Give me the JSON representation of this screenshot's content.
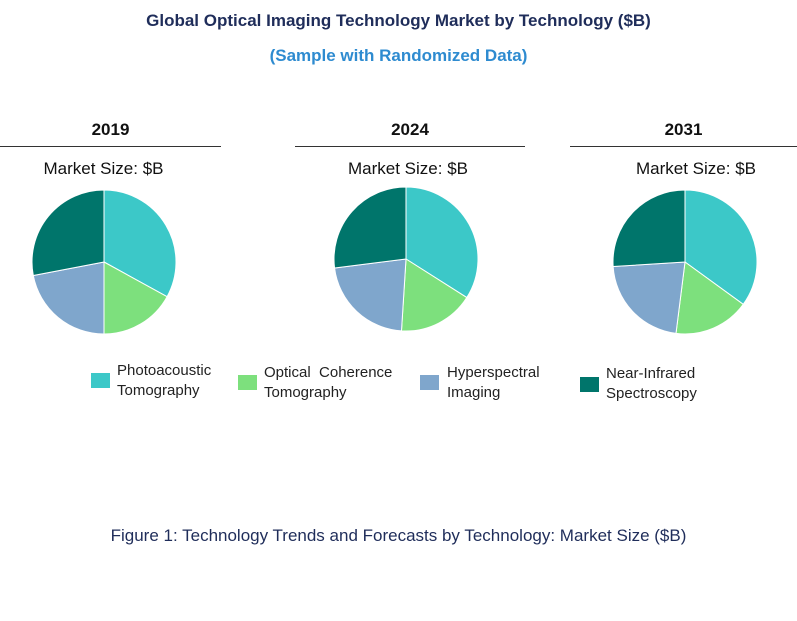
{
  "header": {
    "title": "Global Optical Imaging Technology Market by Technology ($B)",
    "subtitle": "(Sample with Randomized Data)"
  },
  "caption": "Figure 1: Technology Trends and Forecasts by Technology: Market Size ($B)",
  "colors": {
    "photoacoustic": "#3cc8c8",
    "oct": "#7de07d",
    "hyperspectral": "#7fa6cc",
    "nir": "#00756b"
  },
  "legend": [
    {
      "line1": "Photoacoustic",
      "line2": "Tomography"
    },
    {
      "line1": "Optical  Coherence",
      "line2": "Tomography"
    },
    {
      "line1": "Hyperspectral",
      "line2": "Imaging"
    },
    {
      "line1": "Near-Infrared",
      "line2": "Spectroscopy"
    }
  ],
  "chart_data": [
    {
      "type": "pie",
      "year_label": "2019",
      "subtitle": "Market Size: $B",
      "labels": [
        "Photoacoustic Tomography",
        "Optical Coherence Tomography",
        "Hyperspectral Imaging",
        "Near-Infrared Spectroscopy"
      ],
      "values": [
        33,
        17,
        22,
        28
      ]
    },
    {
      "type": "pie",
      "year_label": "2024",
      "subtitle": "Market Size: $B",
      "labels": [
        "Photoacoustic Tomography",
        "Optical Coherence Tomography",
        "Hyperspectral Imaging",
        "Near-Infrared Spectroscopy"
      ],
      "values": [
        34,
        17,
        22,
        27
      ]
    },
    {
      "type": "pie",
      "year_label": "2031",
      "subtitle": "Market Size: $B",
      "labels": [
        "Photoacoustic Tomography",
        "Optical Coherence Tomography",
        "Hyperspectral Imaging",
        "Near-Infrared Spectroscopy"
      ],
      "values": [
        35,
        17,
        22,
        26
      ]
    }
  ]
}
